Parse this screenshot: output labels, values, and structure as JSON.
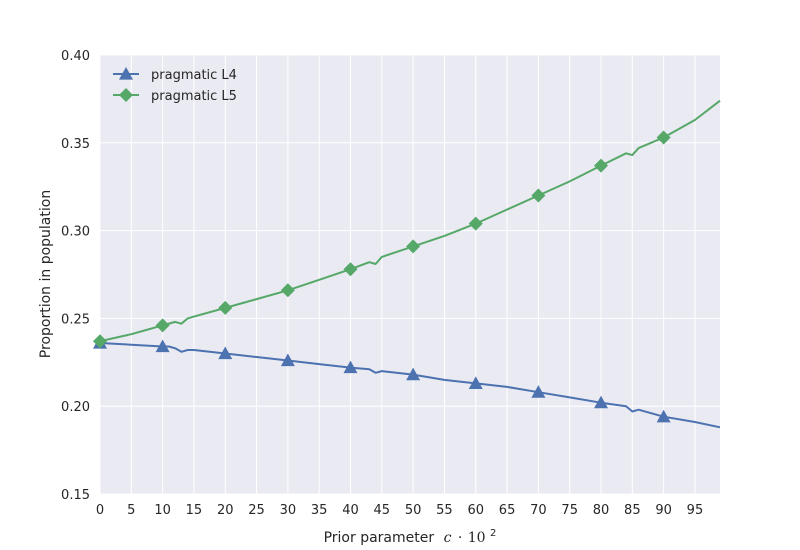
{
  "chart_data": {
    "type": "line",
    "xlabel_prefix": "Prior parameter",
    "xlabel_math": "c",
    "xlabel_dot": "·",
    "xlabel_base": "10",
    "xlabel_exp": "2",
    "ylabel": "Proportion in population",
    "xlim": [
      0,
      99
    ],
    "ylim": [
      0.15,
      0.4
    ],
    "xticks": [
      0,
      5,
      10,
      15,
      20,
      25,
      30,
      35,
      40,
      45,
      50,
      55,
      60,
      65,
      70,
      75,
      80,
      85,
      90,
      95
    ],
    "yticks": [
      "0.15",
      "0.20",
      "0.25",
      "0.30",
      "0.35",
      "0.40"
    ],
    "grid": true,
    "legend_position": "top-left",
    "colors": {
      "background": "#eaeaf2",
      "grid": "#ffffff",
      "L4": "#4c72b0",
      "L5": "#55a868"
    },
    "series": [
      {
        "name": "pragmatic L4",
        "marker": "triangle",
        "color": "#4c72b0",
        "x": [
          0,
          5,
          10,
          11,
          12,
          13,
          14,
          15,
          20,
          25,
          30,
          35,
          40,
          43,
          44,
          45,
          50,
          55,
          60,
          65,
          70,
          75,
          80,
          84,
          85,
          86,
          90,
          95,
          99
        ],
        "values": [
          0.236,
          0.235,
          0.234,
          0.234,
          0.233,
          0.231,
          0.232,
          0.232,
          0.23,
          0.228,
          0.226,
          0.224,
          0.222,
          0.221,
          0.219,
          0.22,
          0.218,
          0.215,
          0.213,
          0.211,
          0.208,
          0.205,
          0.202,
          0.2,
          0.197,
          0.198,
          0.194,
          0.191,
          0.188
        ]
      },
      {
        "name": "pragmatic L5",
        "marker": "diamond",
        "color": "#55a868",
        "x": [
          0,
          5,
          10,
          12,
          13,
          14,
          15,
          20,
          25,
          30,
          35,
          40,
          43,
          44,
          45,
          50,
          55,
          60,
          65,
          70,
          75,
          80,
          84,
          85,
          86,
          90,
          95,
          99
        ],
        "values": [
          0.237,
          0.241,
          0.246,
          0.248,
          0.247,
          0.25,
          0.251,
          0.256,
          0.261,
          0.266,
          0.272,
          0.278,
          0.282,
          0.281,
          0.285,
          0.291,
          0.297,
          0.304,
          0.312,
          0.32,
          0.328,
          0.337,
          0.344,
          0.343,
          0.347,
          0.353,
          0.363,
          0.374
        ]
      }
    ],
    "marker_x": [
      0,
      10,
      20,
      30,
      40,
      50,
      60,
      70,
      80,
      90
    ]
  }
}
